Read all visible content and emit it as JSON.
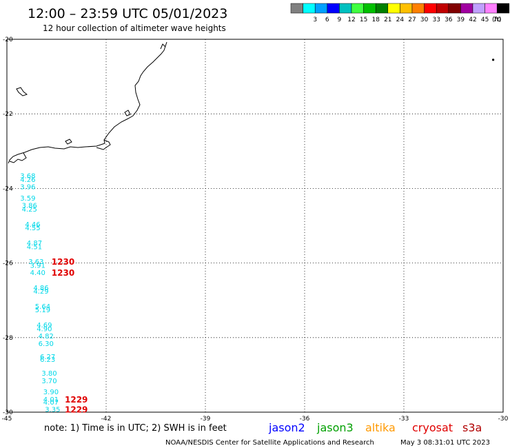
{
  "header": {
    "title": "12:00 – 23:59 UTC 05/01/2023",
    "subtitle": "12 hour collection of altimeter wave heights"
  },
  "legend": {
    "unit_label": "(ft)",
    "bins": [
      {
        "label": "",
        "color": "#808080"
      },
      {
        "label": "3",
        "color": "#00ffff"
      },
      {
        "label": "6",
        "color": "#00a0ff"
      },
      {
        "label": "9",
        "color": "#0000ff"
      },
      {
        "label": "12",
        "color": "#00c0c0"
      },
      {
        "label": "15",
        "color": "#40ff40"
      },
      {
        "label": "18",
        "color": "#00c000"
      },
      {
        "label": "21",
        "color": "#008000"
      },
      {
        "label": "24",
        "color": "#ffff00"
      },
      {
        "label": "27",
        "color": "#ffc000"
      },
      {
        "label": "30",
        "color": "#ff8000"
      },
      {
        "label": "33",
        "color": "#ff0000"
      },
      {
        "label": "36",
        "color": "#c00000"
      },
      {
        "label": "39",
        "color": "#800000"
      },
      {
        "label": "42",
        "color": "#a000a0"
      },
      {
        "label": "45",
        "color": "#c0a0ff"
      },
      {
        "label": "70",
        "color": "#ff80ff"
      },
      {
        "label": "",
        "color": "#000000"
      }
    ]
  },
  "footer": {
    "note": "note:  1) Time is in UTC;  2) SWH is in feet",
    "credit": "NOAA/NESDIS Center for Satellite Applications and Research",
    "timestamp": "May  3 08:31:01 UTC 2023",
    "satellites": [
      {
        "name": "jason2",
        "color": "#0000ff"
      },
      {
        "name": "jason3",
        "color": "#00a000"
      },
      {
        "name": "altika",
        "color": "#ff9900"
      },
      {
        "name": "cryosat",
        "color": "#e00000"
      },
      {
        "name": "s3a",
        "color": "#b00000"
      }
    ]
  },
  "chart_data": {
    "type": "scatter",
    "title": "12:00 – 23:59 UTC 05/01/2023",
    "subtitle": "12 hour collection of altimeter wave heights",
    "xlim": [
      -45,
      -30
    ],
    "ylim": [
      -30,
      -20
    ],
    "x_ticks": [
      -45,
      -42,
      -39,
      -36,
      -33,
      -30
    ],
    "y_ticks": [
      -20,
      -22,
      -24,
      -26,
      -28,
      -30
    ],
    "grid": true,
    "wave_heights": [
      {
        "lon": -44.6,
        "lat": -23.65,
        "value": "3.68",
        "color": "#00d8e8"
      },
      {
        "lon": -44.6,
        "lat": -23.75,
        "value": "4.26",
        "color": "#00d8e8"
      },
      {
        "lon": -44.6,
        "lat": -23.95,
        "value": "3.96",
        "color": "#00d8e8"
      },
      {
        "lon": -44.6,
        "lat": -24.25,
        "value": "3.59",
        "color": "#00d8e8"
      },
      {
        "lon": -44.55,
        "lat": -24.45,
        "value": "3.86",
        "color": "#00d8e8"
      },
      {
        "lon": -44.55,
        "lat": -24.55,
        "value": "4.25",
        "color": "#00d8e8"
      },
      {
        "lon": -44.45,
        "lat": -24.95,
        "value": "4.46",
        "color": "#00d8e8"
      },
      {
        "lon": -44.45,
        "lat": -25.05,
        "value": "4.55",
        "color": "#00d8e8"
      },
      {
        "lon": -44.4,
        "lat": -25.45,
        "value": "4.87",
        "color": "#00d8e8"
      },
      {
        "lon": -44.4,
        "lat": -25.55,
        "value": "4.51",
        "color": "#00d8e8"
      },
      {
        "lon": -44.35,
        "lat": -25.95,
        "value": "3.63",
        "color": "#00d8e8"
      },
      {
        "lon": -44.3,
        "lat": -26.05,
        "value": "3.91",
        "color": "#00d8e8"
      },
      {
        "lon": -44.3,
        "lat": -26.25,
        "value": "4.40",
        "color": "#00d8e8"
      },
      {
        "lon": -44.2,
        "lat": -26.65,
        "value": "4.86",
        "color": "#00d8e8"
      },
      {
        "lon": -44.2,
        "lat": -26.75,
        "value": "4.29",
        "color": "#00d8e8"
      },
      {
        "lon": -44.15,
        "lat": -27.15,
        "value": "5.64",
        "color": "#00d8e8"
      },
      {
        "lon": -44.15,
        "lat": -27.25,
        "value": "5.19",
        "color": "#00d8e8"
      },
      {
        "lon": -44.1,
        "lat": -27.65,
        "value": "4.69",
        "color": "#00d8e8"
      },
      {
        "lon": -44.1,
        "lat": -27.75,
        "value": "4.90",
        "color": "#00d8e8"
      },
      {
        "lon": -44.05,
        "lat": -27.95,
        "value": "4.82",
        "color": "#00d8e8"
      },
      {
        "lon": -44.05,
        "lat": -28.15,
        "value": "6.30",
        "color": "#00d8e8"
      },
      {
        "lon": -44.0,
        "lat": -28.5,
        "value": "6.27",
        "color": "#00d8e8"
      },
      {
        "lon": -44.0,
        "lat": -28.58,
        "value": "6.23",
        "color": "#00d8e8"
      },
      {
        "lon": -43.95,
        "lat": -28.95,
        "value": "3.80",
        "color": "#00d8e8"
      },
      {
        "lon": -43.95,
        "lat": -29.15,
        "value": "3.70",
        "color": "#00d8e8"
      },
      {
        "lon": -43.9,
        "lat": -29.45,
        "value": "3.90",
        "color": "#00d8e8"
      },
      {
        "lon": -43.9,
        "lat": -29.65,
        "value": "4.01",
        "color": "#00d8e8"
      },
      {
        "lon": -43.9,
        "lat": -29.72,
        "value": "4.07",
        "color": "#00d8e8"
      },
      {
        "lon": -43.85,
        "lat": -29.92,
        "value": "3.35",
        "color": "#00d8e8"
      }
    ],
    "time_labels": [
      {
        "lon": -43.65,
        "lat": -25.95,
        "value": "1230",
        "color": "#e00000"
      },
      {
        "lon": -43.65,
        "lat": -26.25,
        "value": "1230",
        "color": "#e00000"
      },
      {
        "lon": -43.25,
        "lat": -29.65,
        "value": "1229",
        "color": "#e00000"
      },
      {
        "lon": -43.25,
        "lat": -29.92,
        "value": "1229",
        "color": "#e00000"
      }
    ],
    "isolated_points": [
      {
        "lon": -30.3,
        "lat": -20.55
      }
    ]
  }
}
